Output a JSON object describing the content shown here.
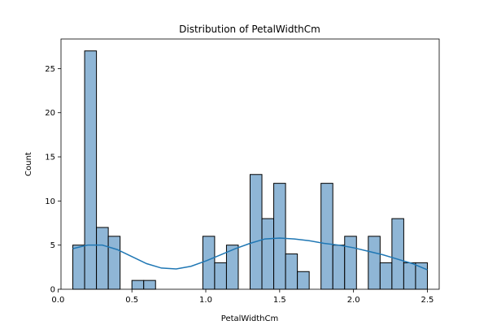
{
  "chart_data": {
    "type": "bar",
    "title": "Distribution of PetalWidthCm",
    "xlabel": "PetalWidthCm",
    "ylabel": "Count",
    "xlim": [
      0.02,
      2.58
    ],
    "ylim": [
      0,
      28.35
    ],
    "bin_edges": [
      0.1,
      0.18,
      0.26,
      0.34,
      0.42,
      0.5,
      0.58,
      0.66,
      0.74,
      0.82,
      0.9,
      0.98,
      1.06,
      1.14,
      1.22,
      1.3,
      1.38,
      1.46,
      1.54,
      1.62,
      1.7,
      1.78,
      1.86,
      1.94,
      2.02,
      2.1,
      2.18,
      2.26,
      2.34,
      2.42,
      2.5
    ],
    "counts": [
      5,
      27,
      7,
      6,
      0,
      1,
      1,
      0,
      0,
      0,
      0,
      6,
      3,
      5,
      0,
      13,
      8,
      12,
      4,
      2,
      0,
      12,
      5,
      6,
      0,
      6,
      3,
      8,
      3,
      3
    ],
    "kde": {
      "x": [
        0.1,
        0.2,
        0.3,
        0.4,
        0.5,
        0.6,
        0.7,
        0.8,
        0.9,
        1.0,
        1.1,
        1.2,
        1.3,
        1.4,
        1.5,
        1.6,
        1.7,
        1.8,
        1.9,
        2.0,
        2.1,
        2.2,
        2.3,
        2.4,
        2.5
      ],
      "y": [
        4.6,
        5.0,
        5.0,
        4.5,
        3.7,
        2.9,
        2.4,
        2.3,
        2.6,
        3.2,
        3.9,
        4.6,
        5.2,
        5.7,
        5.8,
        5.7,
        5.5,
        5.2,
        5.0,
        4.7,
        4.3,
        3.9,
        3.4,
        2.9,
        2.2
      ]
    },
    "xticks": [
      "0.0",
      "0.5",
      "1.0",
      "1.5",
      "2.0",
      "2.5"
    ],
    "yticks": [
      "0",
      "5",
      "10",
      "15",
      "20",
      "25"
    ],
    "bar_color": "#8fb6d6",
    "line_color": "#1f77b4",
    "grid": false
  }
}
